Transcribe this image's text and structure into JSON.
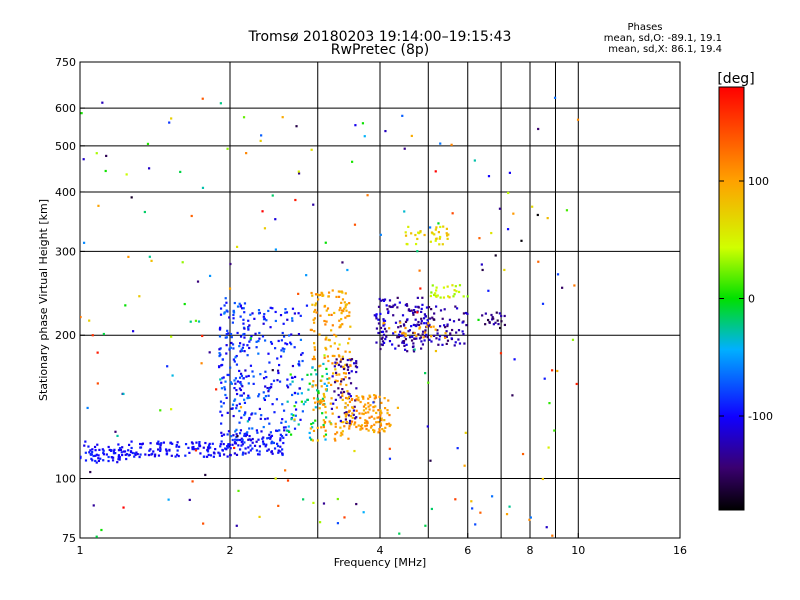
{
  "chart_data": {
    "type": "scatter",
    "title": "Tromsø 20180203 19:14:00–19:15:43",
    "subtitle": "RwPretec (8p)",
    "xlabel": "Frequency [MHz]",
    "ylabel": "Stationary phase Virtual Height [km]",
    "x_scale": "log",
    "y_scale": "log",
    "xlim": [
      1,
      16
    ],
    "ylim": [
      75,
      750
    ],
    "x_ticks": [
      1,
      2,
      4,
      6,
      8,
      10,
      16
    ],
    "y_ticks": [
      75,
      100,
      200,
      300,
      400,
      500,
      600,
      750
    ],
    "grid": true,
    "phase_stats": {
      "heading": "Phases",
      "line_o": "mean, sd,O: -89.1, 19.1",
      "line_x": "mean, sd,X:  86.1, 19.4"
    },
    "colorbar": {
      "label": "[deg]",
      "ticks": [
        "100",
        "0",
        "-100"
      ],
      "tick_values": [
        100,
        0,
        -100
      ],
      "range": [
        -180,
        180
      ]
    },
    "clusters": [
      {
        "x": [
          1.0,
          1.25
        ],
        "y": [
          108,
          118
        ],
        "phase": [
          -110,
          -85
        ],
        "n": 70
      },
      {
        "x": [
          1.25,
          2.0
        ],
        "y": [
          111,
          120
        ],
        "phase": [
          -110,
          -85
        ],
        "n": 120
      },
      {
        "x": [
          2.0,
          2.6
        ],
        "y": [
          112,
          125
        ],
        "phase": [
          -115,
          -80
        ],
        "n": 90
      },
      {
        "x": [
          1.9,
          2.15
        ],
        "y": [
          120,
          240
        ],
        "phase": [
          -110,
          -60
        ],
        "n": 140
      },
      {
        "x": [
          2.1,
          2.8
        ],
        "y": [
          125,
          230
        ],
        "phase": [
          -115,
          -60
        ],
        "n": 180
      },
      {
        "x": [
          2.6,
          3.2
        ],
        "y": [
          120,
          175
        ],
        "phase": [
          -50,
          10
        ],
        "n": 60
      },
      {
        "x": [
          2.9,
          3.5
        ],
        "y": [
          120,
          250
        ],
        "phase": [
          80,
          115
        ],
        "n": 200
      },
      {
        "x": [
          3.2,
          3.6
        ],
        "y": [
          130,
          180
        ],
        "phase": [
          -150,
          -110
        ],
        "n": 60
      },
      {
        "x": [
          3.4,
          4.2
        ],
        "y": [
          125,
          150
        ],
        "phase": [
          85,
          120
        ],
        "n": 120
      },
      {
        "x": [
          3.9,
          5.0
        ],
        "y": [
          185,
          240
        ],
        "phase": [
          -150,
          -100
        ],
        "n": 120
      },
      {
        "x": [
          4.4,
          6.0
        ],
        "y": [
          190,
          230
        ],
        "phase": [
          -150,
          -110
        ],
        "n": 90
      },
      {
        "x": [
          4.0,
          5.5
        ],
        "y": [
          195,
          215
        ],
        "phase": [
          90,
          110
        ],
        "n": 25
      },
      {
        "x": [
          5.0,
          6.0
        ],
        "y": [
          240,
          255
        ],
        "phase": [
          25,
          60
        ],
        "n": 25
      },
      {
        "x": [
          4.5,
          5.5
        ],
        "y": [
          310,
          340
        ],
        "phase": [
          40,
          90
        ],
        "n": 35
      },
      {
        "x": [
          6.4,
          7.2
        ],
        "y": [
          210,
          225
        ],
        "phase": [
          -160,
          -120
        ],
        "n": 20
      },
      {
        "x": [
          1.0,
          10.0
        ],
        "y": [
          75,
          650
        ],
        "phase": [
          -180,
          180
        ],
        "n": 220
      }
    ]
  }
}
